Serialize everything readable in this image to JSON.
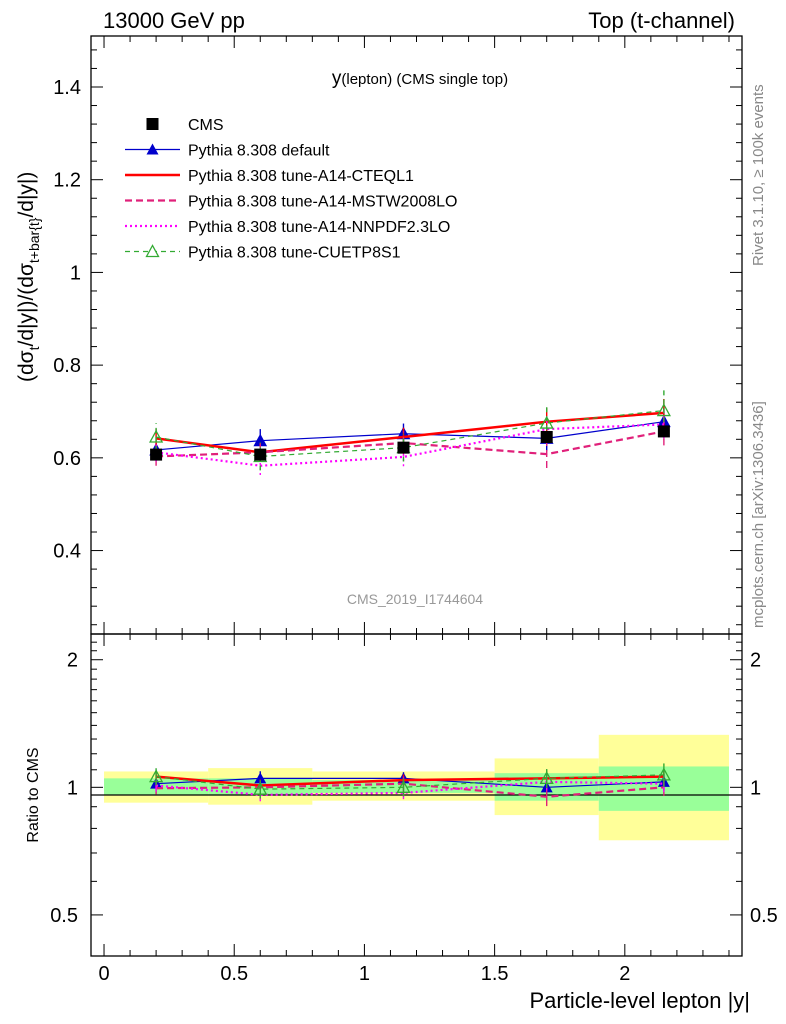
{
  "header": {
    "left": "13000 GeV pp",
    "right": "Top (t-channel)"
  },
  "side_labels": {
    "rivet": "Rivet 3.1.10, ≥ 100k events",
    "mcplots": "mcplots.cern.ch [arXiv:1306.3436]"
  },
  "analysis_tag": "CMS_2019_I1744604",
  "chart_data": [
    {
      "panel": "main",
      "type": "line",
      "title_main": "y",
      "title_sub": "(lepton) (CMS single top)",
      "ylabel": "(dσt/d|y|)/(dσt+bar{t}/d|y|)",
      "xlim": [
        -0.05,
        2.45
      ],
      "ylim": [
        0.22,
        1.51
      ],
      "yticks": [
        0.4,
        0.6,
        0.8,
        1.0,
        1.2,
        1.4
      ],
      "yticklabels": [
        "0.4",
        "0.6",
        "0.8",
        "1",
        "1.2",
        "1.4"
      ],
      "grid": false,
      "legend_position": "top-left",
      "x": [
        0.2,
        0.6,
        1.15,
        1.7,
        2.15
      ],
      "bins": [
        [
          0.0,
          0.4
        ],
        [
          0.4,
          0.8
        ],
        [
          0.8,
          1.5
        ],
        [
          1.5,
          1.9
        ],
        [
          1.9,
          2.4
        ]
      ],
      "data": {
        "name": "CMS",
        "color": "#000000",
        "values": [
          0.607,
          0.607,
          0.622,
          0.645,
          0.657
        ],
        "errors": [
          0.01,
          0.01,
          0.01,
          0.01,
          0.01
        ]
      },
      "series": [
        {
          "name": "Pythia 8.308 default",
          "color": "#0000cc",
          "dash": "solid",
          "width": 1.2,
          "marker": "triangle-filled",
          "values": [
            0.617,
            0.637,
            0.652,
            0.642,
            0.678
          ],
          "errors": [
            0.015,
            0.025,
            0.022,
            0.028,
            0.03
          ]
        },
        {
          "name": "Pythia 8.308 tune-A14-CTEQL1",
          "color": "#ff0000",
          "dash": "solid",
          "width": 2.5,
          "marker": "none",
          "values": [
            0.642,
            0.612,
            0.645,
            0.678,
            0.697
          ],
          "errors": [
            0.02,
            0.02,
            0.02,
            0.03,
            0.03
          ]
        },
        {
          "name": "Pythia 8.308 tune-A14-MSTW2008LO",
          "color": "#e0207a",
          "dash": "dashed",
          "width": 2.2,
          "marker": "none",
          "values": [
            0.603,
            0.612,
            0.632,
            0.608,
            0.657
          ],
          "errors": [
            0.02,
            0.02,
            0.025,
            0.03,
            0.03
          ]
        },
        {
          "name": "Pythia 8.308 tune-A14-NNPDF2.3LO",
          "color": "#ff00ff",
          "dash": "dotted",
          "width": 2.2,
          "marker": "none",
          "values": [
            0.612,
            0.583,
            0.602,
            0.662,
            0.672
          ],
          "errors": [
            0.02,
            0.02,
            0.02,
            0.03,
            0.03
          ]
        },
        {
          "name": "Pythia 8.308 tune-CUETP8S1",
          "color": "#33aa33",
          "dash": "dashed-thin",
          "width": 1.2,
          "marker": "triangle-open",
          "values": [
            0.645,
            0.603,
            0.622,
            0.675,
            0.702
          ],
          "errors": [
            0.03,
            0.03,
            0.03,
            0.035,
            0.045
          ]
        }
      ]
    },
    {
      "panel": "ratio",
      "type": "line",
      "ylabel": "Ratio to CMS",
      "xlabel": "Particle-level lepton |y|",
      "xlim": [
        -0.05,
        2.45
      ],
      "ylim": [
        0.4,
        2.3
      ],
      "xticks": [
        0,
        0.5,
        1,
        1.5,
        2
      ],
      "xticklabels": [
        "0",
        "0.5",
        "1",
        "1.5",
        "2"
      ],
      "yticks": [
        0.5,
        1,
        2
      ],
      "yticklabels": [
        "0.5",
        "1",
        "2"
      ],
      "log_scale_y": true,
      "bands": [
        {
          "bin": [
            0.0,
            0.4
          ],
          "green": [
            0.96,
            1.05
          ],
          "yellow": [
            0.92,
            1.09
          ]
        },
        {
          "bin": [
            0.4,
            0.8
          ],
          "green": [
            0.96,
            1.05
          ],
          "yellow": [
            0.91,
            1.11
          ]
        },
        {
          "bin": [
            0.8,
            1.5
          ],
          "green": [
            0.97,
            1.04
          ],
          "yellow": [
            0.93,
            1.09
          ]
        },
        {
          "bin": [
            1.5,
            1.9
          ],
          "green": [
            0.93,
            1.08
          ],
          "yellow": [
            0.86,
            1.17
          ]
        },
        {
          "bin": [
            1.9,
            2.4
          ],
          "green": [
            0.88,
            1.12
          ],
          "yellow": [
            0.75,
            1.33
          ]
        }
      ],
      "x": [
        0.2,
        0.6,
        1.15,
        1.7,
        2.15
      ],
      "series": [
        {
          "name": "Pythia 8.308 default",
          "values": [
            1.02,
            1.05,
            1.05,
            1.0,
            1.03
          ]
        },
        {
          "name": "Pythia 8.308 tune-A14-CTEQL1",
          "values": [
            1.06,
            1.01,
            1.04,
            1.05,
            1.06
          ]
        },
        {
          "name": "Pythia 8.308 tune-A14-MSTW2008LO",
          "values": [
            0.995,
            1.0,
            1.02,
            0.95,
            1.0
          ]
        },
        {
          "name": "Pythia 8.308 tune-A14-NNPDF2.3LO",
          "values": [
            1.01,
            0.96,
            0.97,
            1.03,
            1.02
          ]
        },
        {
          "name": "Pythia 8.308 tune-CUETP8S1",
          "values": [
            1.06,
            0.99,
            1.0,
            1.05,
            1.07
          ]
        }
      ]
    }
  ]
}
